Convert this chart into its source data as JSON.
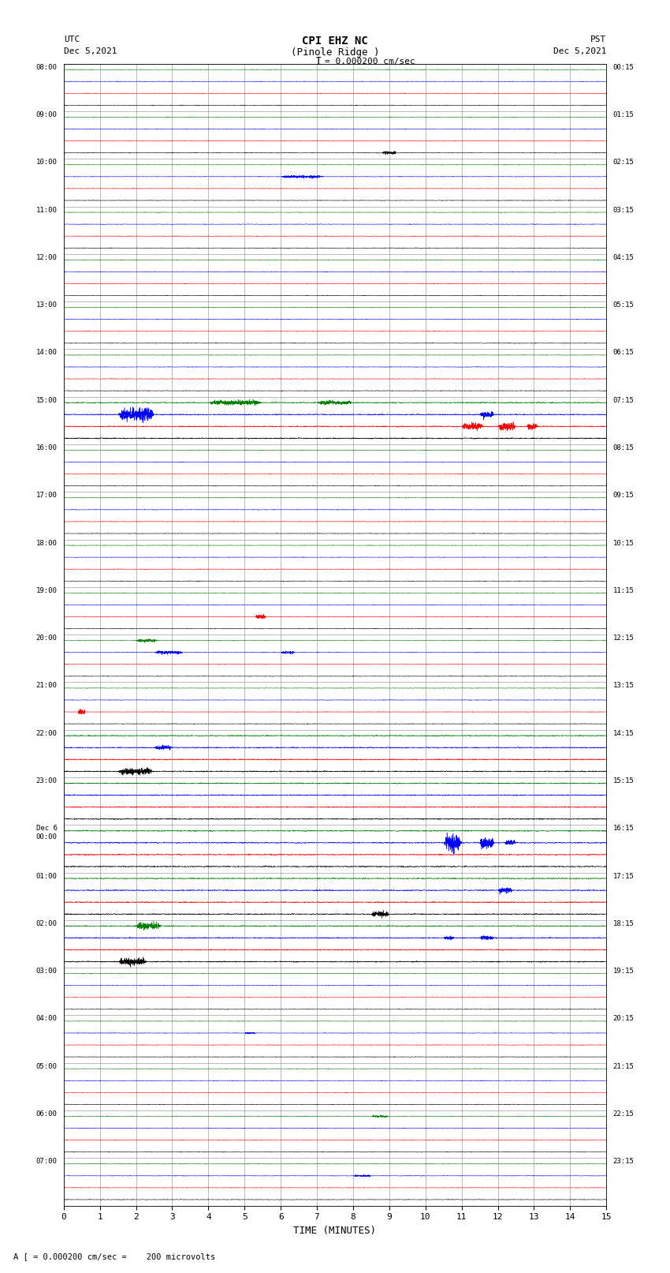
{
  "title_line1": "CPI EHZ NC",
  "title_line2": "(Pinole Ridge )",
  "title_line3": "I = 0.000200 cm/sec",
  "left_header_line1": "UTC",
  "left_header_line2": "Dec 5,2021",
  "right_header_line1": "PST",
  "right_header_line2": "Dec 5,2021",
  "xlabel": "TIME (MINUTES)",
  "footer": "A [ = 0.000200 cm/sec =    200 microvolts",
  "left_times": [
    "08:00",
    "09:00",
    "10:00",
    "11:00",
    "12:00",
    "13:00",
    "14:00",
    "15:00",
    "16:00",
    "17:00",
    "18:00",
    "19:00",
    "20:00",
    "21:00",
    "22:00",
    "23:00",
    "Dec 6\n00:00",
    "01:00",
    "02:00",
    "03:00",
    "04:00",
    "05:00",
    "06:00",
    "07:00"
  ],
  "right_times": [
    "00:15",
    "01:15",
    "02:15",
    "03:15",
    "04:15",
    "05:15",
    "06:15",
    "07:15",
    "08:15",
    "09:15",
    "10:15",
    "11:15",
    "12:15",
    "13:15",
    "14:15",
    "15:15",
    "16:15",
    "17:15",
    "18:15",
    "19:15",
    "20:15",
    "21:15",
    "22:15",
    "23:15"
  ],
  "n_rows": 24,
  "n_traces_per_row": 4,
  "trace_colors": [
    "black",
    "red",
    "blue",
    "green"
  ],
  "x_min": 0,
  "x_max": 15,
  "x_ticks": [
    0,
    1,
    2,
    3,
    4,
    5,
    6,
    7,
    8,
    9,
    10,
    11,
    12,
    13,
    14,
    15
  ],
  "background_color": "white",
  "vgrid_color": "#888888",
  "hgrid_color": "#888888",
  "noise_base": 0.06,
  "special_events": [
    [
      1,
      0,
      8.8,
      0.8,
      0.4
    ],
    [
      2,
      2,
      6.0,
      0.7,
      1.2
    ],
    [
      7,
      2,
      1.5,
      1.5,
      1.0
    ],
    [
      7,
      2,
      2.2,
      1.2,
      0.3
    ],
    [
      7,
      1,
      11.0,
      0.9,
      0.6
    ],
    [
      7,
      1,
      12.0,
      1.0,
      0.5
    ],
    [
      7,
      1,
      12.8,
      0.8,
      0.3
    ],
    [
      7,
      2,
      11.5,
      0.7,
      0.4
    ],
    [
      7,
      3,
      4.0,
      0.6,
      1.5
    ],
    [
      7,
      3,
      7.0,
      0.5,
      1.0
    ],
    [
      11,
      1,
      5.3,
      1.2,
      0.3
    ],
    [
      12,
      3,
      2.0,
      0.8,
      0.6
    ],
    [
      12,
      2,
      2.5,
      0.8,
      0.8
    ],
    [
      12,
      2,
      6.0,
      0.6,
      0.4
    ],
    [
      13,
      1,
      0.4,
      1.5,
      0.2
    ],
    [
      14,
      0,
      1.5,
      0.8,
      1.0
    ],
    [
      14,
      2,
      2.5,
      0.5,
      0.5
    ],
    [
      16,
      2,
      10.5,
      2.0,
      0.5
    ],
    [
      16,
      2,
      11.5,
      1.5,
      0.4
    ],
    [
      16,
      2,
      12.2,
      0.8,
      0.3
    ],
    [
      17,
      0,
      8.5,
      0.7,
      0.5
    ],
    [
      17,
      2,
      12.0,
      0.8,
      0.4
    ],
    [
      18,
      0,
      1.5,
      0.8,
      0.8
    ],
    [
      18,
      3,
      2.0,
      0.9,
      0.7
    ],
    [
      18,
      2,
      10.5,
      0.5,
      0.3
    ],
    [
      18,
      2,
      11.5,
      0.6,
      0.4
    ],
    [
      20,
      2,
      5.0,
      0.4,
      0.3
    ],
    [
      22,
      3,
      8.5,
      0.5,
      0.5
    ],
    [
      23,
      2,
      8.0,
      0.5,
      0.5
    ]
  ],
  "noisy_rows": [
    7,
    14,
    15,
    16,
    17,
    18
  ],
  "noisy_row_amp": 0.12
}
